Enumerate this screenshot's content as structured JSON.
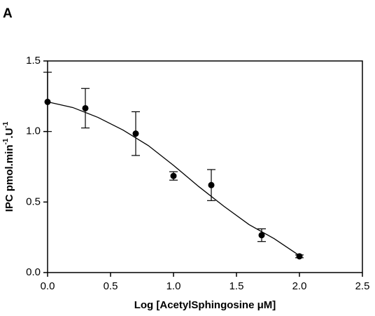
{
  "chart_data": {
    "type": "scatter",
    "panel_label": "A",
    "xlabel": "Log [AcetylSphingosine μM]",
    "ylabel_parts": [
      "IPC pmol.min",
      "-1",
      ".U",
      "-1"
    ],
    "xlim": [
      0,
      2.5
    ],
    "ylim": [
      0,
      1.5
    ],
    "xticks": [
      {
        "value": 0,
        "label": "0.0"
      },
      {
        "value": 0.5,
        "label": "0.5"
      },
      {
        "value": 1,
        "label": "1.0"
      },
      {
        "value": 1.5,
        "label": "1.5"
      },
      {
        "value": 2,
        "label": "2.0"
      },
      {
        "value": 2.5,
        "label": "2.5"
      }
    ],
    "yticks": [
      {
        "value": 0,
        "label": "0.0"
      },
      {
        "value": 0.5,
        "label": "0.5"
      },
      {
        "value": 1,
        "label": "1.0"
      },
      {
        "value": 1.5,
        "label": "1.5"
      }
    ],
    "color": "#000000",
    "x": [
      0,
      0.3,
      0.7,
      1.0,
      1.3,
      1.7,
      2.0
    ],
    "values": [
      1.21,
      1.165,
      0.985,
      0.685,
      0.62,
      0.265,
      0.115
    ],
    "errors": [
      0.21,
      0.14,
      0.155,
      0.03,
      0.11,
      0.045,
      0.01
    ],
    "fit": {
      "x": [
        0,
        0.2,
        0.4,
        0.6,
        0.8,
        1.0,
        1.2,
        1.4,
        1.6,
        1.8,
        2.0
      ],
      "values": [
        1.21,
        1.17,
        1.1,
        1.01,
        0.9,
        0.76,
        0.61,
        0.47,
        0.34,
        0.24,
        0.12
      ]
    }
  }
}
